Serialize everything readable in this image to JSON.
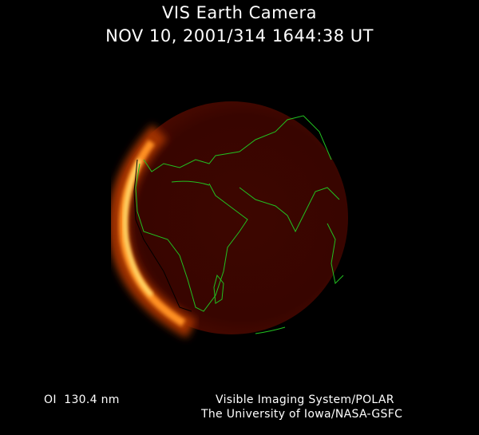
{
  "header": {
    "title": "VIS Earth Camera",
    "timestamp": "NOV 10, 2001/314 1644:38 UT"
  },
  "footer": {
    "wavelength": "OI  130.4 nm",
    "credit_line1": "Visible Imaging System/POLAR",
    "credit_line2": "The University of Iowa/NASA-GSFC"
  },
  "colors": {
    "background": "#000000",
    "disk": "#3a0600",
    "aurora_glow": "#ffc040",
    "coastlines": "#22c020"
  }
}
